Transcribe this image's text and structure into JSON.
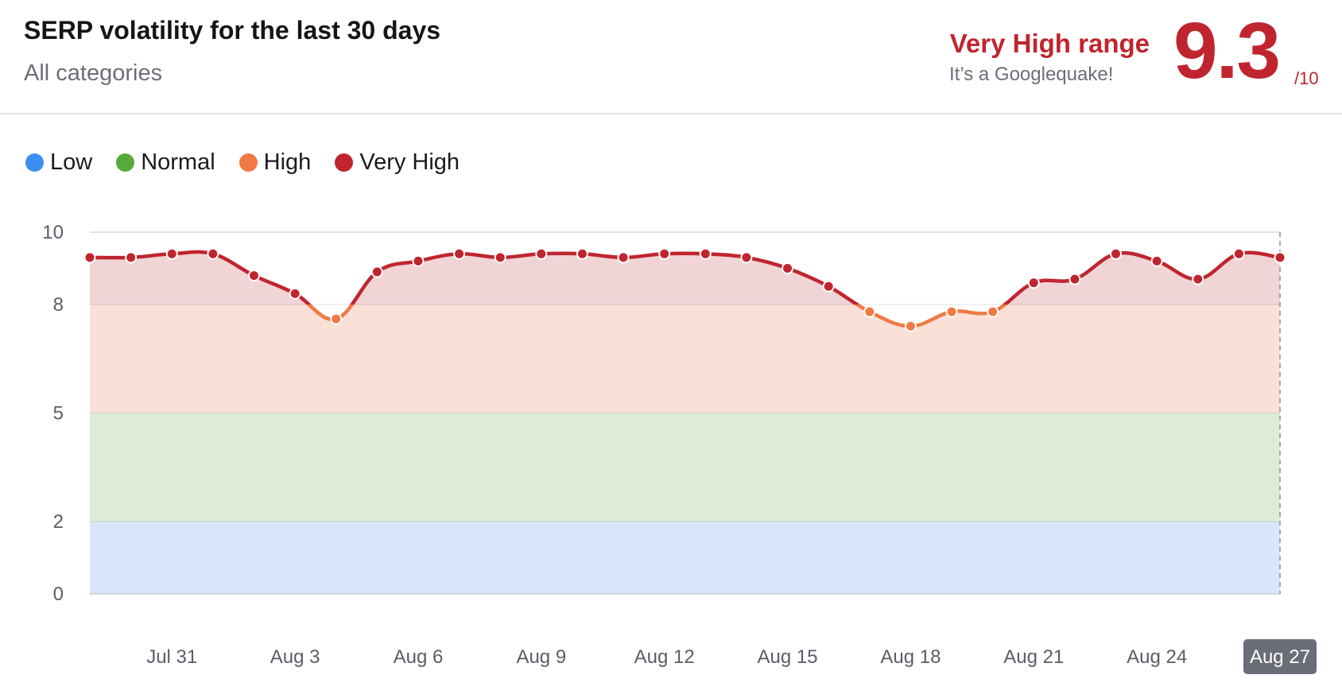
{
  "header": {
    "title": "SERP volatility for the last 30 days",
    "subtitle": "All categories",
    "range_label": "Very High range",
    "range_desc": "It’s a Googlequake!",
    "score": "9.3",
    "score_max": "/10"
  },
  "colors": {
    "low": "#3b8ff0",
    "normal": "#58a93a",
    "high": "#f07a44",
    "very_high": "#c0252f"
  },
  "chart_data": {
    "type": "area",
    "x_axis_type": "date",
    "legend": [
      {
        "name": "Low",
        "color": "#3b8ff0",
        "range": [
          0,
          2
        ]
      },
      {
        "name": "Normal",
        "color": "#58a93a",
        "range": [
          2,
          5
        ]
      },
      {
        "name": "High",
        "color": "#f07a44",
        "range": [
          5,
          8
        ]
      },
      {
        "name": "Very High",
        "color": "#c0252f",
        "range": [
          8,
          10
        ]
      }
    ],
    "ylim": [
      0,
      10
    ],
    "yticks": [
      0,
      2,
      5,
      8,
      10
    ],
    "x": [
      "Jul 29",
      "Jul 30",
      "Jul 31",
      "Aug 1",
      "Aug 2",
      "Aug 3",
      "Aug 4",
      "Aug 5",
      "Aug 6",
      "Aug 7",
      "Aug 8",
      "Aug 9",
      "Aug 10",
      "Aug 11",
      "Aug 12",
      "Aug 13",
      "Aug 14",
      "Aug 15",
      "Aug 16",
      "Aug 17",
      "Aug 18",
      "Aug 19",
      "Aug 20",
      "Aug 21",
      "Aug 22",
      "Aug 23",
      "Aug 24",
      "Aug 25",
      "Aug 26",
      "Aug 27"
    ],
    "xtick_labels": [
      "Jul 31",
      "Aug 3",
      "Aug 6",
      "Aug 9",
      "Aug 12",
      "Aug 15",
      "Aug 18",
      "Aug 21",
      "Aug 24",
      "Aug 27"
    ],
    "highlighted_x": "Aug 27",
    "values": [
      9.3,
      9.3,
      9.4,
      9.4,
      8.8,
      8.3,
      7.6,
      8.9,
      9.2,
      9.4,
      9.3,
      9.4,
      9.4,
      9.3,
      9.4,
      9.4,
      9.3,
      9.0,
      8.5,
      7.8,
      7.4,
      7.8,
      7.8,
      8.6,
      8.7,
      9.4,
      9.2,
      8.7,
      9.4,
      9.3
    ],
    "title": "SERP volatility for the last 30 days",
    "subtitle": "All categories",
    "grid": true
  }
}
